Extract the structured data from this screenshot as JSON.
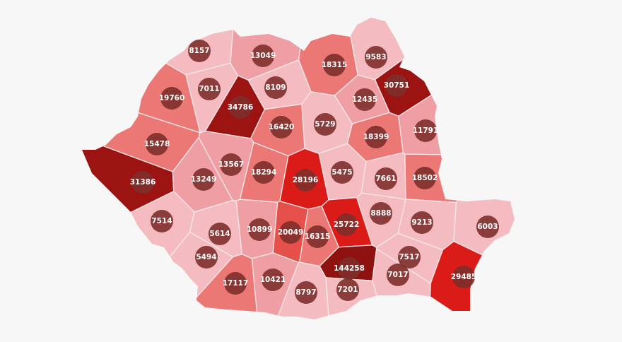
{
  "map": {
    "country": "Romania",
    "background": "#f7f7f7",
    "counties": [
      {
        "value": "8157",
        "fill": "#f4bcc0"
      },
      {
        "value": "13049",
        "fill": "#ef9ea3"
      },
      {
        "value": "9583",
        "fill": "#f4bcc0"
      },
      {
        "value": "18315",
        "fill": "#ec7876"
      },
      {
        "value": "7011",
        "fill": "#f4bcc0"
      },
      {
        "value": "8109",
        "fill": "#f4bcc0"
      },
      {
        "value": "19760",
        "fill": "#ec7876"
      },
      {
        "value": "34786",
        "fill": "#9b1411"
      },
      {
        "value": "30751",
        "fill": "#9b1411"
      },
      {
        "value": "12435",
        "fill": "#ef9ea3"
      },
      {
        "value": "16420",
        "fill": "#ec7876"
      },
      {
        "value": "5729",
        "fill": "#f4bcc0"
      },
      {
        "value": "18399",
        "fill": "#ec7876"
      },
      {
        "value": "11791",
        "fill": "#ef9ea3"
      },
      {
        "value": "15478",
        "fill": "#ec7876"
      },
      {
        "value": "13567",
        "fill": "#ef9ea3"
      },
      {
        "value": "18294",
        "fill": "#ec7876"
      },
      {
        "value": "5475",
        "fill": "#f4bcc0"
      },
      {
        "value": "28196",
        "fill": "#da1b17"
      },
      {
        "value": "31386",
        "fill": "#9b1411"
      },
      {
        "value": "13249",
        "fill": "#ef9ea3"
      },
      {
        "value": "7661",
        "fill": "#f4bcc0"
      },
      {
        "value": "18502",
        "fill": "#ec7876"
      },
      {
        "value": "7514",
        "fill": "#f4bcc0"
      },
      {
        "value": "8888",
        "fill": "#f4bcc0"
      },
      {
        "value": "9213",
        "fill": "#f4bcc0"
      },
      {
        "value": "6003",
        "fill": "#f4bcc0"
      },
      {
        "value": "25722",
        "fill": "#da1b17"
      },
      {
        "value": "5614",
        "fill": "#f4bcc0"
      },
      {
        "value": "10899",
        "fill": "#ef9ea3"
      },
      {
        "value": "20049",
        "fill": "#e6504b"
      },
      {
        "value": "16315",
        "fill": "#ec7876"
      },
      {
        "value": "5494",
        "fill": "#f4bcc0"
      },
      {
        "value": "144258",
        "fill": "#8e1210"
      },
      {
        "value": "7517",
        "fill": "#f4bcc0"
      },
      {
        "value": "7017",
        "fill": "#f4bcc0"
      },
      {
        "value": "29485",
        "fill": "#da1b17"
      },
      {
        "value": "17117",
        "fill": "#ec7876"
      },
      {
        "value": "10421",
        "fill": "#ef9ea3"
      },
      {
        "value": "8797",
        "fill": "#f4bcc0"
      },
      {
        "value": "7201",
        "fill": "#f4bcc0"
      }
    ]
  }
}
